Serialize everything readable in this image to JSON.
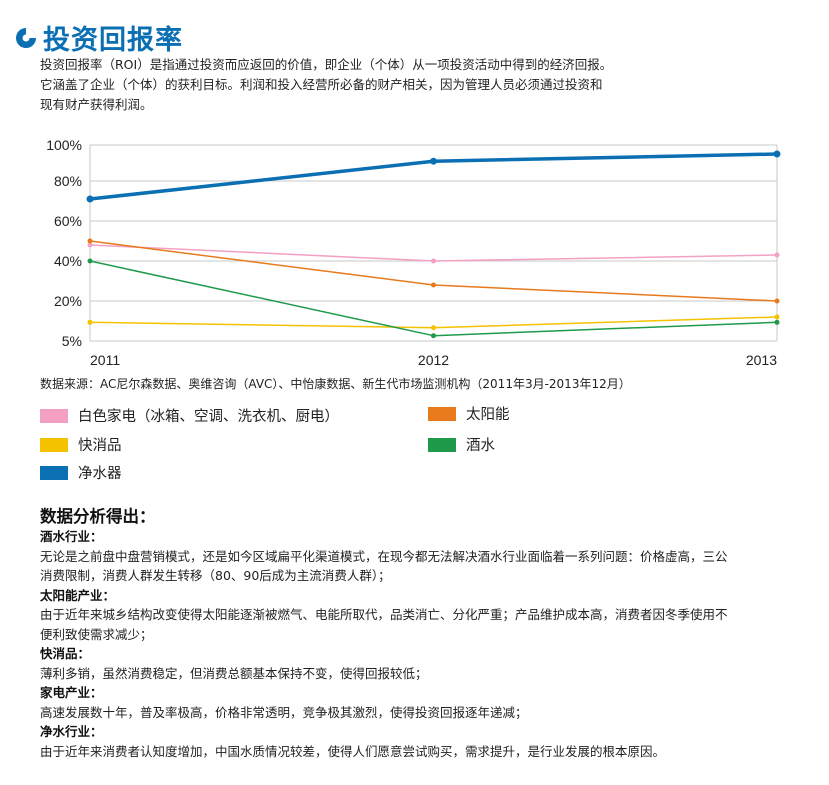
{
  "page": {
    "title": "投资回报率",
    "intro": [
      "投资回报率（ROI）是指通过投资而应返回的价值，即企业（个体）从一项投资活动中得到的经济回报。",
      "它涵盖了企业（个体）的获利目标。利润和投入经营所必备的财产相关，因为管理人员必须通过投资和",
      "现有财产获得利润。"
    ],
    "source": "数据来源：AC尼尔森数据、奥维咨询（AVC）、中怡康数据、新生代市场监测机构（2011年3月-2013年12月）",
    "analysis_title": "数据分析得出：",
    "analysis": [
      {
        "heading": "酒水行业：",
        "body": [
          "无论是之前盘中盘营销模式，还是如今区域扁平化渠道模式，在现今都无法解决酒水行业面临着一系列问题：价格虚高，三公",
          "消费限制，消费人群发生转移（80、90后成为主流消费人群）；"
        ]
      },
      {
        "heading": "太阳能产业：",
        "body": [
          "由于近年来城乡结构改变使得太阳能逐渐被燃气、电能所取代，品类消亡、分化严重；产品维护成本高，消费者因冬季使用不",
          "便利致使需求减少；"
        ]
      },
      {
        "heading": "快消品：",
        "body": [
          "薄利多销，虽然消费稳定，但消费总额基本保持不变，使得回报较低；"
        ]
      },
      {
        "heading": "家电产业：",
        "body": [
          "高速发展数十年，普及率极高，价格非常透明，竞争极其激烈，使得投资回报逐年递减；"
        ]
      },
      {
        "heading": "净水行业：",
        "body": [
          "由于近年来消费者认知度增加，中国水质情况较差，使得人们愿意尝试购买，需求提升，是行业发展的根本原因。"
        ]
      }
    ]
  },
  "colors": {
    "brand": "#0b6fb4",
    "grid": "#c8c8c8"
  },
  "chart_data": {
    "type": "line",
    "x": [
      "2011",
      "2012",
      "2013"
    ],
    "y_ticks": [
      "5%",
      "20%",
      "40%",
      "60%",
      "80%",
      "100%"
    ],
    "ylim": [
      5,
      100
    ],
    "grid": true,
    "legend_position": "bottom",
    "series": [
      {
        "name": "白色家电（冰箱、空调、洗衣机、厨电）",
        "color": "#f4a0c4",
        "width": 1.5,
        "values": [
          48,
          40,
          43
        ]
      },
      {
        "name": "太阳能",
        "color": "#e87a1c",
        "width": 1.5,
        "values": [
          50,
          28,
          20
        ]
      },
      {
        "name": "快消品",
        "color": "#f5c200",
        "width": 1.5,
        "values": [
          12,
          10,
          14
        ]
      },
      {
        "name": "酒水",
        "color": "#1e9a4a",
        "width": 1.5,
        "values": [
          40,
          7,
          12
        ]
      },
      {
        "name": "净水器",
        "color": "#0b6fb4",
        "width": 3.5,
        "values": [
          71,
          91,
          95
        ]
      }
    ]
  }
}
